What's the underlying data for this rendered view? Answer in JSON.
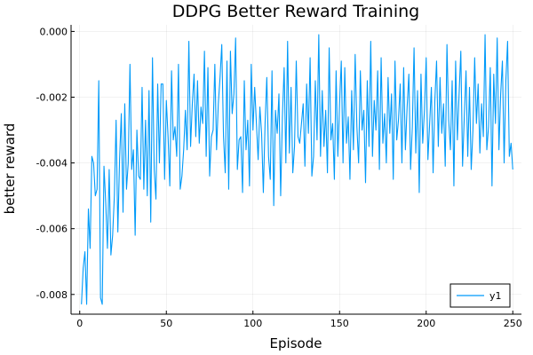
{
  "chart_data": {
    "type": "line",
    "title": "DDPG Better Reward Training",
    "xlabel": "Episode",
    "ylabel": "better reward",
    "xlim": [
      -5,
      255
    ],
    "ylim": [
      -0.0086,
      0.0002
    ],
    "xticks": [
      0,
      50,
      100,
      150,
      200,
      250
    ],
    "yticks": [
      -0.008,
      -0.006,
      -0.004,
      -0.002,
      0.0
    ],
    "xtick_labels": [
      "0",
      "50",
      "100",
      "150",
      "200",
      "250"
    ],
    "ytick_labels": [
      "-0.008",
      "-0.006",
      "-0.004",
      "-0.002",
      "0.000"
    ],
    "grid": true,
    "legend_position": "bottom-right",
    "line_color": "#009af9",
    "series": [
      {
        "name": "y1",
        "x_start": 1,
        "x_step": 1,
        "values": [
          -0.0083,
          -0.0072,
          -0.0067,
          -0.0083,
          -0.0054,
          -0.0066,
          -0.0038,
          -0.004,
          -0.005,
          -0.0048,
          -0.0015,
          -0.0081,
          -0.0083,
          -0.0041,
          -0.0052,
          -0.0066,
          -0.0042,
          -0.0068,
          -0.0062,
          -0.005,
          -0.0027,
          -0.0061,
          -0.0039,
          -0.0025,
          -0.0055,
          -0.0022,
          -0.0048,
          -0.004,
          -0.001,
          -0.0042,
          -0.0036,
          -0.0062,
          -0.003,
          -0.0044,
          -0.0045,
          -0.0017,
          -0.0048,
          -0.0027,
          -0.005,
          -0.0018,
          -0.0058,
          -0.0008,
          -0.0042,
          -0.0051,
          -0.0016,
          -0.004,
          -0.0016,
          -0.0016,
          -0.0045,
          -0.0021,
          -0.0032,
          -0.0047,
          -0.0012,
          -0.0033,
          -0.0029,
          -0.0038,
          -0.001,
          -0.0048,
          -0.0044,
          -0.0036,
          -0.0024,
          -0.0036,
          -0.0003,
          -0.0035,
          -0.0022,
          -0.0013,
          -0.0032,
          -0.0015,
          -0.0034,
          -0.0023,
          -0.0028,
          -0.0006,
          -0.0038,
          -0.0011,
          -0.0044,
          -0.0032,
          -0.003,
          -0.001,
          -0.0036,
          -0.0022,
          -0.0014,
          -0.0004,
          -0.0032,
          -0.0043,
          -0.0009,
          -0.0048,
          -0.0006,
          -0.0025,
          -0.0019,
          -0.0002,
          -0.0042,
          -0.0033,
          -0.0032,
          -0.0049,
          -0.0015,
          -0.0036,
          -0.0027,
          -0.0047,
          -0.001,
          -0.003,
          -0.0017,
          -0.0028,
          -0.0039,
          -0.0023,
          -0.0031,
          -0.0049,
          -0.0028,
          -0.0014,
          -0.0038,
          -0.0045,
          -0.0012,
          -0.0053,
          -0.0024,
          -0.0031,
          -0.0019,
          -0.005,
          -0.0026,
          -0.0011,
          -0.004,
          -0.0003,
          -0.0037,
          -0.0017,
          -0.0043,
          -0.0035,
          -0.0009,
          -0.0032,
          -0.0034,
          -0.0028,
          -0.0022,
          -0.0041,
          -0.0016,
          -0.0031,
          -0.0008,
          -0.0044,
          -0.0038,
          -0.0015,
          -0.0033,
          -0.0001,
          -0.0038,
          -0.0018,
          -0.0035,
          -0.0024,
          -0.0043,
          -0.0005,
          -0.0033,
          -0.0028,
          -0.0045,
          -0.0012,
          -0.0038,
          -0.0022,
          -0.0009,
          -0.004,
          -0.0011,
          -0.0034,
          -0.0026,
          -0.0045,
          -0.0018,
          -0.0036,
          -0.0007,
          -0.0029,
          -0.004,
          -0.0012,
          -0.003,
          -0.0024,
          -0.0046,
          -0.0015,
          -0.0035,
          -0.0003,
          -0.0038,
          -0.0021,
          -0.003,
          -0.0012,
          -0.0042,
          -0.0008,
          -0.0034,
          -0.0025,
          -0.004,
          -0.0014,
          -0.0031,
          -0.0019,
          -0.0045,
          -0.0009,
          -0.0033,
          -0.0027,
          -0.0016,
          -0.004,
          -0.0011,
          -0.0036,
          -0.0023,
          -0.0013,
          -0.0042,
          -0.0029,
          -0.0005,
          -0.0037,
          -0.0018,
          -0.0049,
          -0.0013,
          -0.0034,
          -0.0024,
          -0.0008,
          -0.0039,
          -0.0028,
          -0.0017,
          -0.0043,
          -0.0021,
          -0.0009,
          -0.0035,
          -0.0014,
          -0.0031,
          -0.0022,
          -0.0041,
          -0.0004,
          -0.0027,
          -0.0036,
          -0.0015,
          -0.0047,
          -0.0009,
          -0.0033,
          -0.0019,
          -0.0006,
          -0.0041,
          -0.0026,
          -0.0012,
          -0.0038,
          -0.0017,
          -0.0042,
          -0.003,
          -0.0008,
          -0.0028,
          -0.0016,
          -0.0037,
          -0.0022,
          -0.0032,
          -0.0001,
          -0.0036,
          -0.0029,
          -0.0011,
          -0.0047,
          -0.0013,
          -0.0028,
          -0.0002,
          -0.0036,
          -0.0019,
          -0.0009,
          -0.004,
          -0.0015,
          -0.0003,
          -0.0038,
          -0.0034,
          -0.0042
        ]
      }
    ]
  }
}
